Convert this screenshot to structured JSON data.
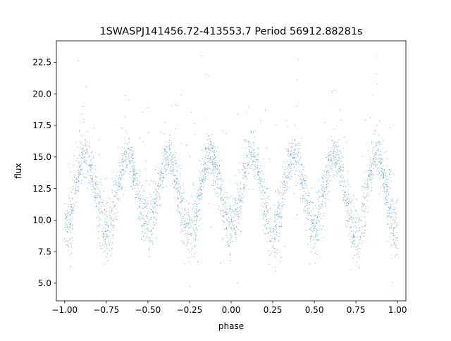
{
  "chart_data": {
    "type": "scatter",
    "title": "1SWASPJ141456.72-413553.7 Period 56912.88281s",
    "xlabel": "phase",
    "ylabel": "flux",
    "xlim": [
      -1.05,
      1.05
    ],
    "ylim": [
      3.6,
      24.2
    ],
    "xticks": [
      {
        "value": -1.0,
        "label": "−1.00"
      },
      {
        "value": -0.75,
        "label": "−0.75"
      },
      {
        "value": -0.5,
        "label": "−0.50"
      },
      {
        "value": -0.25,
        "label": "−0.25"
      },
      {
        "value": 0.0,
        "label": "0.00"
      },
      {
        "value": 0.25,
        "label": "0.25"
      },
      {
        "value": 0.5,
        "label": "0.50"
      },
      {
        "value": 0.75,
        "label": "0.75"
      },
      {
        "value": 1.0,
        "label": "1.00"
      }
    ],
    "yticks": [
      {
        "value": 5.0,
        "label": "5.0"
      },
      {
        "value": 7.5,
        "label": "7.5"
      },
      {
        "value": 10.0,
        "label": "10.0"
      },
      {
        "value": 12.5,
        "label": "12.5"
      },
      {
        "value": 15.0,
        "label": "15.0"
      },
      {
        "value": 17.5,
        "label": "17.5"
      },
      {
        "value": 20.0,
        "label": "20.0"
      },
      {
        "value": 22.5,
        "label": "22.5"
      }
    ],
    "grid": false,
    "marker_color": "#1f77b4",
    "series": [
      {
        "profile_points": [
          {
            "x": -1.0,
            "y": 9.0
          },
          {
            "x": -0.875,
            "y": 15.3
          },
          {
            "x": -0.75,
            "y": 9.0
          },
          {
            "x": -0.625,
            "y": 15.0
          },
          {
            "x": -0.5,
            "y": 9.8
          },
          {
            "x": -0.375,
            "y": 15.1
          },
          {
            "x": -0.25,
            "y": 9.0
          },
          {
            "x": -0.125,
            "y": 15.2
          },
          {
            "x": 0.0,
            "y": 9.2
          },
          {
            "x": 0.125,
            "y": 15.3
          },
          {
            "x": 0.25,
            "y": 9.0
          },
          {
            "x": 0.375,
            "y": 15.2
          },
          {
            "x": 0.5,
            "y": 9.6
          },
          {
            "x": 0.625,
            "y": 15.0
          },
          {
            "x": 0.75,
            "y": 9.0
          },
          {
            "x": 0.875,
            "y": 15.1
          },
          {
            "x": 1.0,
            "y": 9.0
          }
        ],
        "flux_max": 23.8,
        "flux_min": 4.6
      }
    ]
  }
}
